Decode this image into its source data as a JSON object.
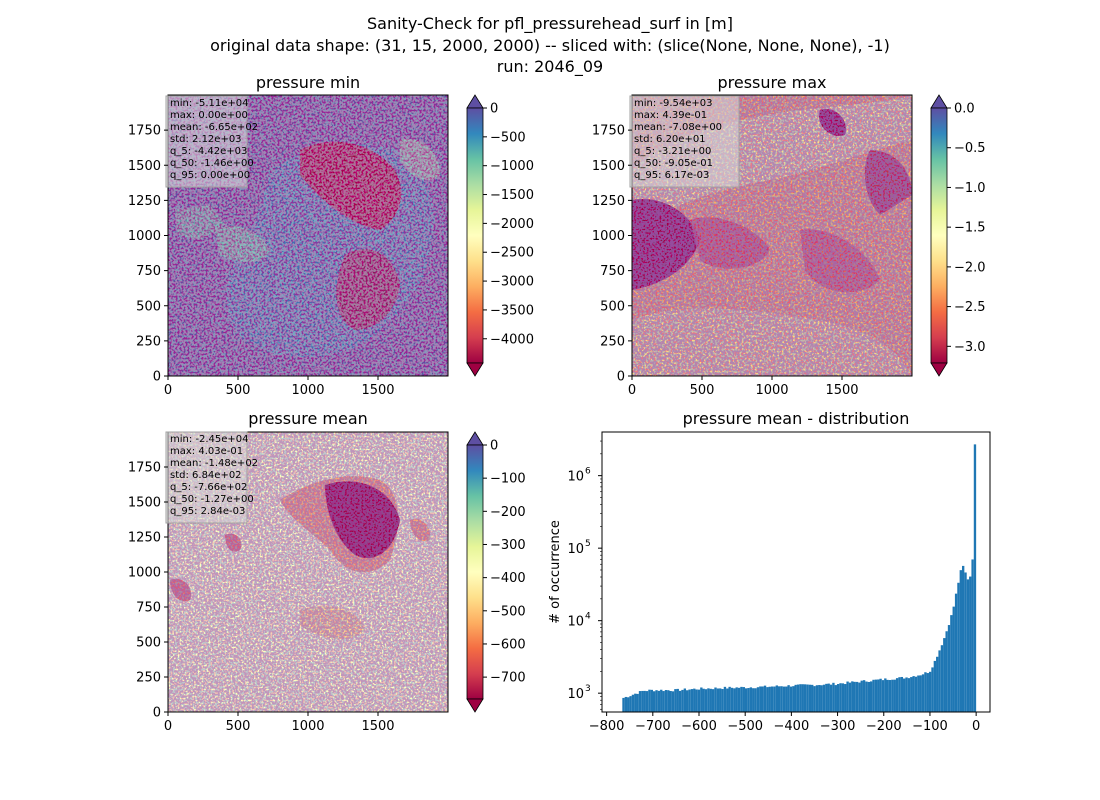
{
  "figure": {
    "title_lines": [
      "Sanity-Check for pfl_pressurehead_surf in [m]",
      "original data shape: (31, 15, 2000, 2000) -- sliced with: (slice(None, None, None), -1)",
      "run: 2046_09"
    ]
  },
  "chart_data": [
    {
      "type": "heatmap",
      "title": "pressure min",
      "xlim": [
        0,
        2000
      ],
      "ylim": [
        0,
        2000
      ],
      "xticks": [
        0,
        500,
        1000,
        1500
      ],
      "yticks": [
        0,
        250,
        500,
        750,
        1000,
        1250,
        1500,
        1750
      ],
      "colorbar": {
        "cmap": "Spectral",
        "range": [
          -4420,
          0
        ],
        "extend": "both",
        "ticks": [
          0,
          -500,
          -1000,
          -1500,
          -2000,
          -2500,
          -3000,
          -3500,
          -4000
        ]
      },
      "stats": [
        "min: -5.11e+04",
        "max: 0.00e+00",
        "mean: -6.65e+02",
        "std: 2.12e+03",
        "q_5: -4.42e+03",
        "q_50: -1.46e+00",
        "q_95: 0.00e+00"
      ]
    },
    {
      "type": "heatmap",
      "title": "pressure max",
      "xlim": [
        0,
        2000
      ],
      "ylim": [
        0,
        2000
      ],
      "xticks": [
        0,
        500,
        1000,
        1500
      ],
      "yticks": [
        0,
        250,
        500,
        750,
        1000,
        1250,
        1500,
        1750
      ],
      "colorbar": {
        "cmap": "Spectral",
        "range": [
          -3.21,
          0.0
        ],
        "extend": "both",
        "ticks": [
          0.0,
          -0.5,
          -1.0,
          -1.5,
          -2.0,
          -2.5,
          -3.0
        ]
      },
      "stats": [
        "min: -9.54e+03",
        "max: 4.39e-01",
        "mean: -7.08e+00",
        "std: 6.20e+01",
        "q_5: -3.21e+00",
        "q_50: -9.05e-01",
        "q_95: 6.17e-03"
      ]
    },
    {
      "type": "heatmap",
      "title": "pressure mean",
      "xlim": [
        0,
        2000
      ],
      "ylim": [
        0,
        2000
      ],
      "xticks": [
        0,
        500,
        1000,
        1500
      ],
      "yticks": [
        0,
        250,
        500,
        750,
        1000,
        1250,
        1500,
        1750
      ],
      "colorbar": {
        "cmap": "Spectral",
        "range": [
          -766,
          0
        ],
        "extend": "both",
        "ticks": [
          0,
          -100,
          -200,
          -300,
          -400,
          -500,
          -600,
          -700
        ]
      },
      "stats": [
        "min: -2.45e+04",
        "max: 4.03e-01",
        "mean: -1.48e+02",
        "std: 6.84e+02",
        "q_5: -7.66e+02",
        "q_50: -1.27e+00",
        "q_95: 2.84e-03"
      ]
    },
    {
      "type": "bar",
      "title": "pressure mean - distribution",
      "xlabel": "",
      "ylabel": "# of occurrence",
      "yscale": "log",
      "xlim": [
        -810,
        30
      ],
      "ylim": [
        550,
        4000000
      ],
      "xticks": [
        -800,
        -700,
        -600,
        -500,
        -400,
        -300,
        -200,
        -100,
        0
      ],
      "yticks": [
        1000,
        10000,
        100000,
        1000000
      ],
      "ytick_labels": [
        "10",
        "10",
        "10",
        "10"
      ],
      "ytick_exponents": [
        "3",
        "4",
        "5",
        "6"
      ],
      "color": "#1f77b4",
      "bin_range": [
        -766,
        0
      ],
      "bin_count": 150,
      "anchors": [
        [
          -766,
          850
        ],
        [
          -750,
          920
        ],
        [
          -735,
          1000
        ],
        [
          -720,
          1080
        ],
        [
          -700,
          1100
        ],
        [
          -650,
          1100
        ],
        [
          -600,
          1150
        ],
        [
          -550,
          1180
        ],
        [
          -500,
          1200
        ],
        [
          -450,
          1230
        ],
        [
          -400,
          1270
        ],
        [
          -350,
          1300
        ],
        [
          -300,
          1350
        ],
        [
          -250,
          1450
        ],
        [
          -200,
          1550
        ],
        [
          -150,
          1650
        ],
        [
          -120,
          1800
        ],
        [
          -100,
          2000
        ],
        [
          -90,
          2700
        ],
        [
          -80,
          3800
        ],
        [
          -70,
          5500
        ],
        [
          -60,
          8500
        ],
        [
          -50,
          14000
        ],
        [
          -40,
          30000
        ],
        [
          -30,
          60000
        ],
        [
          -25,
          50000
        ],
        [
          -20,
          40000
        ],
        [
          -15,
          35000
        ],
        [
          -10,
          50000
        ],
        [
          -5,
          110000
        ],
        [
          0,
          2700000
        ]
      ]
    }
  ]
}
